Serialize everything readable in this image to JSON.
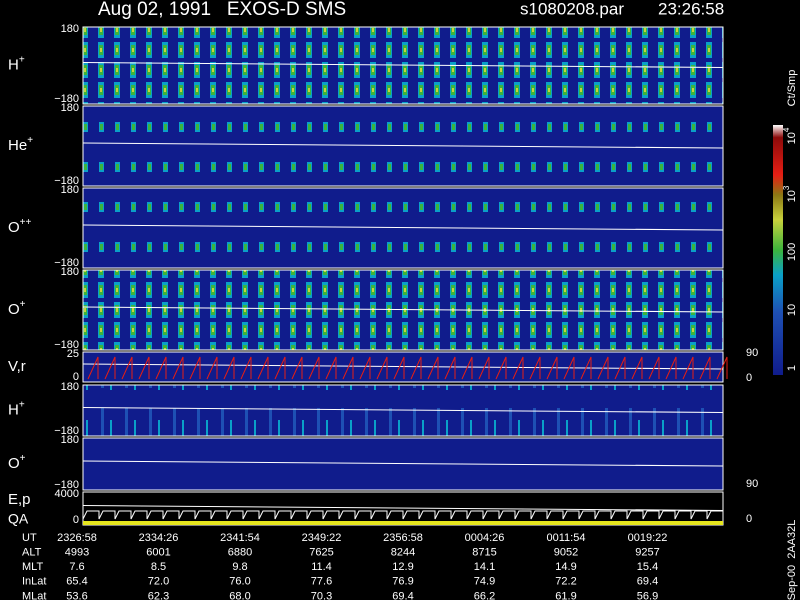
{
  "header": {
    "title": "Aug 02, 1991   EXOS-D SMS",
    "file": "s1080208.par",
    "time": "23:26:58"
  },
  "panels": [
    {
      "label": "H",
      "sup": "+",
      "ticks": [
        "180",
        "−180"
      ]
    },
    {
      "label": "He",
      "sup": "+",
      "ticks": [
        "180",
        "−180"
      ]
    },
    {
      "label": "O",
      "sup": "++",
      "ticks": [
        "180",
        "−180"
      ]
    },
    {
      "label": "O",
      "sup": "+",
      "ticks": [
        "180",
        "−180"
      ]
    },
    {
      "label": "V,r",
      "ticks": [
        "25",
        "0"
      ],
      "right_ticks": [
        "90",
        "0"
      ]
    },
    {
      "label": "H",
      "sup": "+",
      "ticks": [
        "180",
        "−180"
      ]
    },
    {
      "label": "O",
      "sup": "+",
      "ticks": [
        "180",
        "−180"
      ],
      "right_ticks": [
        "90"
      ]
    },
    {
      "label": "E,p",
      "label2": "QA",
      "ticks": [
        "4000",
        "0"
      ],
      "right_ticks": [
        "0"
      ]
    }
  ],
  "colorbar": {
    "unit": "Ct/Smp",
    "ticks": [
      {
        "base": "1"
      },
      {
        "base": "10"
      },
      {
        "base": "100"
      },
      {
        "base": "10",
        "exp": "3"
      },
      {
        "base": "10",
        "exp": "4"
      }
    ]
  },
  "side_note": "Sep-00  2AA32L",
  "table": {
    "rows": [
      {
        "label": "UT",
        "values": [
          "2326:58",
          "2334:26",
          "2341:54",
          "2349:22",
          "2356:58",
          "0004:26",
          "0011:54",
          "0019:22"
        ]
      },
      {
        "label": "ALT",
        "values": [
          "4993",
          "6001",
          "6880",
          "7625",
          "8244",
          "8715",
          "9052",
          "9257"
        ]
      },
      {
        "label": "MLT",
        "values": [
          "7.6",
          "8.5",
          "9.8",
          "11.4",
          "12.9",
          "14.1",
          "14.9",
          "15.4"
        ]
      },
      {
        "label": "InLat",
        "values": [
          "65.4",
          "72.0",
          "76.0",
          "77.6",
          "76.9",
          "74.9",
          "72.2",
          "69.4"
        ]
      },
      {
        "label": "MLat",
        "values": [
          "53.6",
          "62.3",
          "68.0",
          "70.3",
          "69.4",
          "66.2",
          "61.9",
          "56.9"
        ]
      }
    ]
  }
}
